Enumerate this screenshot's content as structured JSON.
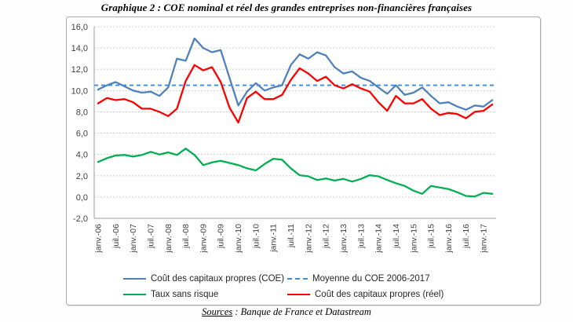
{
  "title": "Graphique 2 : COE nominal et réel des grandes entreprises non-financières françaises",
  "source": {
    "label": "Sources",
    "text": " : Banque de France et Datastream"
  },
  "chart_data": {
    "type": "line",
    "title": "Graphique 2 : COE nominal et réel des grandes entreprises non-financières françaises",
    "x_start": "janv.-06",
    "x_end": "avr.-17",
    "x_step_months": 3,
    "x_tick_labels": [
      "janv.-06",
      "juil.-06",
      "janv.-07",
      "juil.-07",
      "janv.-08",
      "juil.-08",
      "janv.-09",
      "juil.-09",
      "janv.-10",
      "juil.-10",
      "janv.-11",
      "juil.-11",
      "janv.-12",
      "juil.-12",
      "janv.-13",
      "juil.-13",
      "janv.-14",
      "juil.-14",
      "janv.-15",
      "juil.-15",
      "janv.-16",
      "juil.-16",
      "janv.-17"
    ],
    "ylim": [
      -2,
      16
    ],
    "y_tick_values": [
      16,
      14,
      12,
      10,
      8,
      6,
      4,
      2,
      0,
      -2
    ],
    "y_tick_labels": [
      "16,0",
      "14,0",
      "12,0",
      "10,0",
      "8,0",
      "6,0",
      "4,0",
      "2,0",
      "0,0",
      "-2,0"
    ],
    "grid": "horizontal",
    "legend_position": "bottom",
    "series": [
      {
        "key": "coe-nominal",
        "name": "Coût des capitaux propres (COE)",
        "color": "#4f81bd",
        "style": "solid",
        "values": [
          10.1,
          10.5,
          10.8,
          10.4,
          10.0,
          9.8,
          9.9,
          9.5,
          10.3,
          13.0,
          12.8,
          14.9,
          14.0,
          13.6,
          13.8,
          11.2,
          8.6,
          9.9,
          10.7,
          10.0,
          10.3,
          10.5,
          12.4,
          13.4,
          13.0,
          13.6,
          13.3,
          12.2,
          11.6,
          11.8,
          11.2,
          10.9,
          10.3,
          9.7,
          10.5,
          9.6,
          9.8,
          10.3,
          9.5,
          8.8,
          8.9,
          8.5,
          8.2,
          8.6,
          8.5,
          9.1
        ]
      },
      {
        "key": "coe-moyenne",
        "name": "Moyenne du COE 2006-2017",
        "color": "#3a8dde",
        "style": "dashed-flat",
        "value": 10.5
      },
      {
        "key": "taux-sans-risque",
        "name": "Taux sans risque",
        "color": "#00b050",
        "style": "solid",
        "values": [
          3.3,
          3.65,
          3.9,
          3.95,
          3.8,
          3.95,
          4.25,
          4.0,
          4.2,
          3.95,
          4.55,
          3.95,
          3.0,
          3.25,
          3.4,
          3.2,
          3.0,
          2.7,
          2.5,
          3.1,
          3.6,
          3.5,
          2.7,
          2.05,
          1.95,
          1.6,
          1.75,
          1.55,
          1.7,
          1.45,
          1.7,
          2.05,
          1.95,
          1.6,
          1.3,
          1.05,
          0.6,
          0.3,
          1.05,
          0.9,
          0.75,
          0.45,
          0.1,
          0.05,
          0.4,
          0.3
        ]
      },
      {
        "key": "coe-reel",
        "name": "Coût des capitaux propres (réel)",
        "color": "#ff0000",
        "style": "solid",
        "values": [
          8.8,
          9.3,
          9.1,
          9.2,
          8.9,
          8.3,
          8.3,
          8.0,
          7.6,
          8.3,
          10.9,
          12.4,
          11.9,
          12.2,
          10.8,
          8.4,
          7.0,
          9.3,
          9.9,
          9.2,
          9.2,
          9.6,
          11.0,
          12.1,
          11.6,
          10.9,
          11.3,
          10.5,
          10.2,
          10.6,
          10.2,
          9.9,
          8.9,
          8.1,
          9.5,
          8.8,
          8.8,
          9.2,
          8.3,
          7.7,
          7.9,
          7.8,
          7.4,
          8.0,
          8.1,
          8.7
        ]
      }
    ],
    "colors": {
      "grid": "#cfcfcf",
      "axis": "#9c9c9c",
      "tick_text": "#404040"
    }
  }
}
